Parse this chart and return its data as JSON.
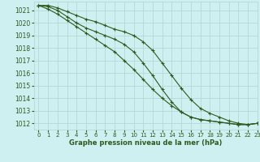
{
  "title": "Graphe pression niveau de la mer (hPa)",
  "background_color": "#cef0f0",
  "grid_color": "#b8d8d8",
  "line_color": "#2d5a1e",
  "xlim": [
    -0.5,
    23
  ],
  "ylim": [
    1011.5,
    1021.7
  ],
  "xticks": [
    0,
    1,
    2,
    3,
    4,
    5,
    6,
    7,
    8,
    9,
    10,
    11,
    12,
    13,
    14,
    15,
    16,
    17,
    18,
    19,
    20,
    21,
    22,
    23
  ],
  "yticks": [
    1012,
    1013,
    1014,
    1015,
    1016,
    1017,
    1018,
    1019,
    1020,
    1021
  ],
  "series": [
    [
      1021.4,
      1021.4,
      1021.2,
      1020.9,
      1020.6,
      1020.3,
      1020.1,
      1019.8,
      1019.5,
      1019.3,
      1019.0,
      1018.5,
      1017.8,
      1016.8,
      1015.8,
      1014.8,
      1013.9,
      1013.2,
      1012.8,
      1012.5,
      1012.2,
      1012.0,
      1011.9,
      1012.0
    ],
    [
      1021.4,
      1021.3,
      1021.0,
      1020.5,
      1020.0,
      1019.6,
      1019.3,
      1019.0,
      1018.7,
      1018.3,
      1017.7,
      1016.8,
      1015.8,
      1014.7,
      1013.7,
      1012.9,
      1012.5,
      1012.3,
      1012.2,
      1012.1,
      1012.0,
      1011.9,
      1011.9,
      1012.0
    ],
    [
      1021.4,
      1021.1,
      1020.7,
      1020.2,
      1019.7,
      1019.2,
      1018.7,
      1018.2,
      1017.7,
      1017.0,
      1016.3,
      1015.5,
      1014.7,
      1014.0,
      1013.4,
      1012.9,
      1012.5,
      1012.3,
      1012.2,
      1012.1,
      1012.0,
      1011.9,
      1011.9,
      1012.0
    ]
  ]
}
